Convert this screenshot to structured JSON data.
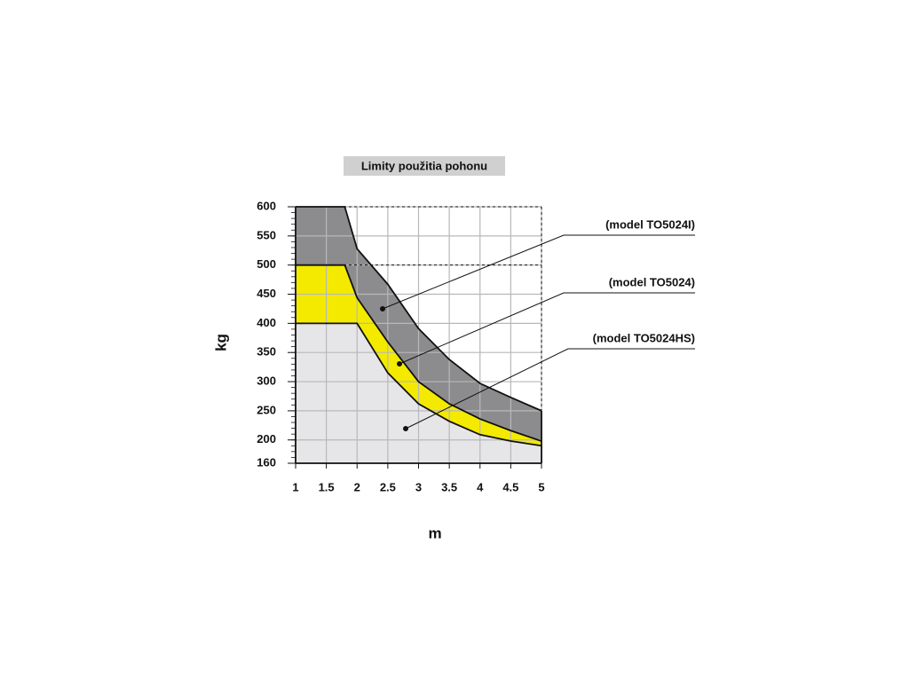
{
  "chart_data": {
    "type": "area",
    "title": "Limity použitia pohonu",
    "x_label": "m",
    "y_label": "kg",
    "x": [
      1,
      1.8,
      2,
      2.5,
      3,
      3.5,
      4,
      4.5,
      5
    ],
    "series": [
      {
        "name": "(model TO5024I)",
        "color": "#8c8c8e",
        "values": [
          600,
          600,
          528,
          467,
          391,
          338,
          297,
          273,
          250
        ]
      },
      {
        "name": "(model TO5024)",
        "color": "#f3ea00",
        "values": [
          500,
          500,
          444,
          368,
          300,
          262,
          236,
          216,
          198
        ]
      },
      {
        "name": "(model TO5024HS)",
        "color": "#e6e6e8",
        "values": [
          400,
          400,
          400,
          315,
          262,
          232,
          209,
          198,
          190
        ]
      }
    ],
    "xlim": [
      1,
      5
    ],
    "xticks": [
      1,
      1.5,
      2,
      2.5,
      3,
      3.5,
      4,
      4.5,
      5
    ],
    "ylim": [
      160,
      600
    ],
    "yticks": [
      160,
      200,
      250,
      300,
      350,
      400,
      450,
      500,
      550,
      600
    ],
    "grid": true
  }
}
